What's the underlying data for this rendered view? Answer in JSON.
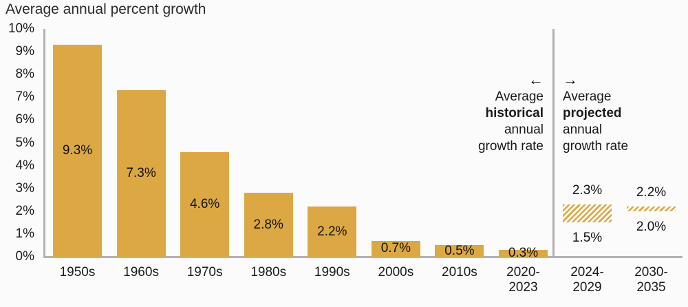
{
  "title": "Average annual percent growth",
  "colors": {
    "bar": "#DCA844",
    "axis_line": "#B1B1B1",
    "text": "#1A1A1A",
    "title_text": "#2B2B2B"
  },
  "chart_data": {
    "type": "bar",
    "title": "Average annual percent growth",
    "xlabel": "",
    "ylabel": "Average annual percent growth",
    "ylim": [
      0,
      10
    ],
    "grid": false,
    "legend_position": "none",
    "y_tick_labels": [
      "0%",
      "1%",
      "2%",
      "3%",
      "4%",
      "5%",
      "6%",
      "7%",
      "8%",
      "9%",
      "10%"
    ],
    "categories": [
      "1950s",
      "1960s",
      "1970s",
      "1980s",
      "1990s",
      "2000s",
      "2010s",
      "2020-2023"
    ],
    "values": [
      9.3,
      7.3,
      4.6,
      2.8,
      2.2,
      0.7,
      0.5,
      0.3
    ],
    "bar_value_labels": [
      "9.3%",
      "7.3%",
      "4.6%",
      "2.8%",
      "2.2%",
      "0.7%",
      "0.5%",
      "0.3%"
    ],
    "projections": [
      {
        "category": "2024-2029",
        "low": 1.5,
        "high": 2.3,
        "low_label": "1.5%",
        "high_label": "2.3%"
      },
      {
        "category": "2030-2035",
        "low": 2.0,
        "high": 2.2,
        "low_label": "2.0%",
        "high_label": "2.2%"
      }
    ],
    "annotations": {
      "historical": {
        "arrow": "←",
        "line1": "Average",
        "line2": "historical",
        "line3": "annual",
        "line4": "growth rate"
      },
      "projected": {
        "arrow": "→",
        "line1": "Average",
        "line2": "projected",
        "line3": "annual",
        "line4": "growth rate"
      }
    }
  }
}
